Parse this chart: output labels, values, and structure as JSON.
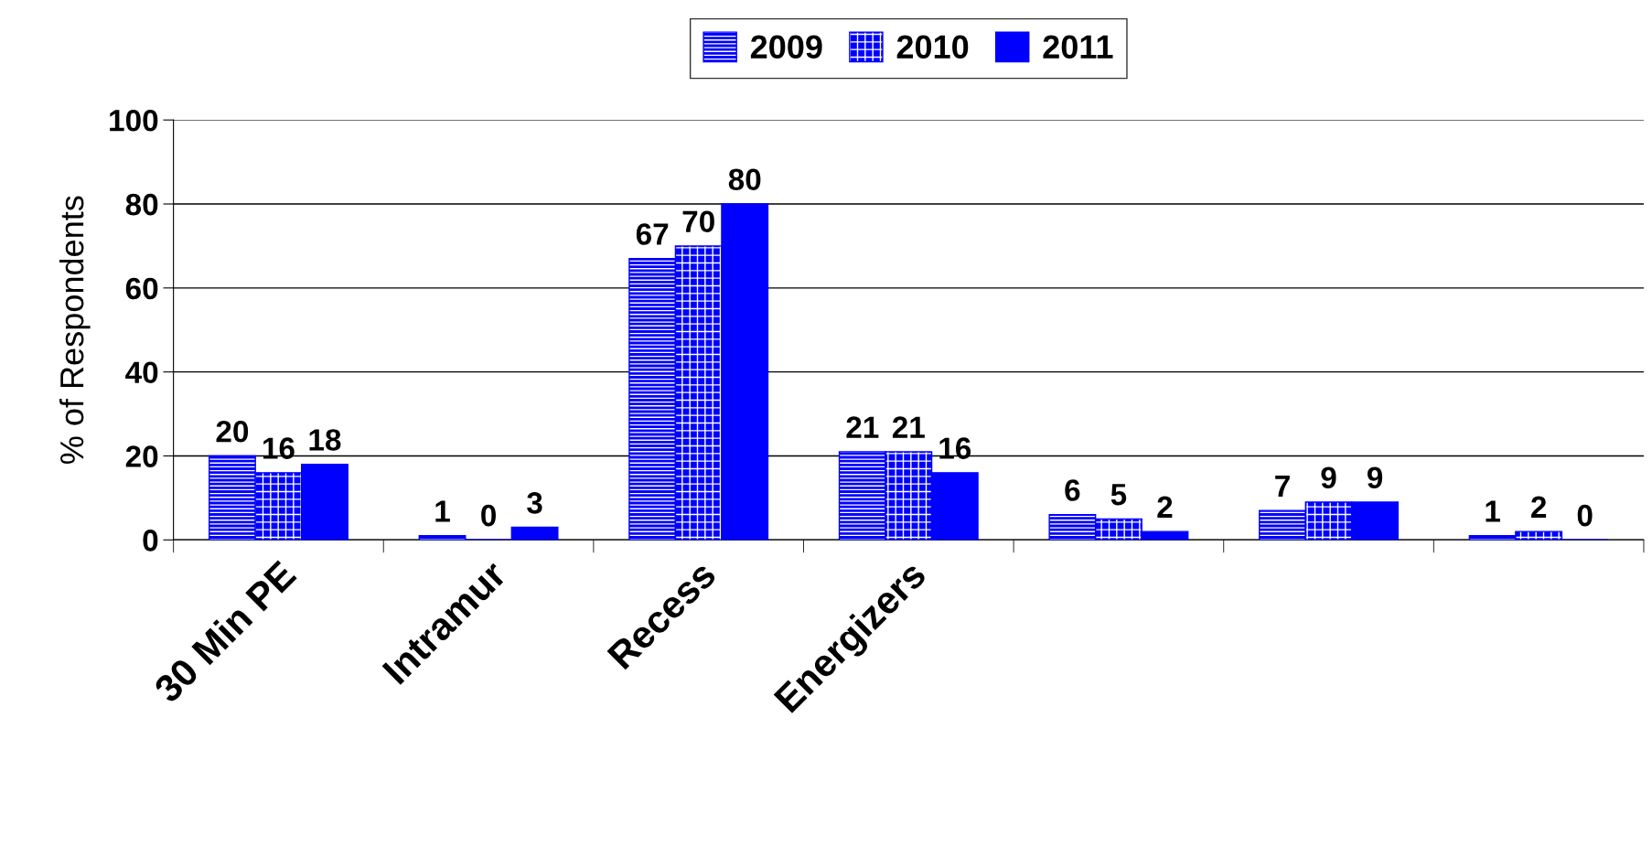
{
  "chart_data": {
    "type": "bar",
    "ylabel": "% of Respondents",
    "categories": [
      "30 Min PE",
      "Intramur",
      "Recess",
      "Energizers",
      null,
      null,
      null
    ],
    "series": [
      {
        "name": "2009",
        "color": "#0000ff",
        "values": [
          20,
          1,
          67,
          21,
          6,
          7,
          1
        ]
      },
      {
        "name": "2010",
        "color": "#0000ff",
        "values": [
          16,
          0,
          70,
          21,
          5,
          9,
          2
        ]
      },
      {
        "name": "2011",
        "color": "#0000ff",
        "values": [
          18,
          3,
          80,
          16,
          2,
          9,
          0
        ]
      }
    ],
    "ylim": [
      0,
      100
    ],
    "yticks": [
      0,
      20,
      40,
      60,
      80,
      100
    ],
    "grid": "y",
    "legend": "top",
    "data_labels": true
  }
}
